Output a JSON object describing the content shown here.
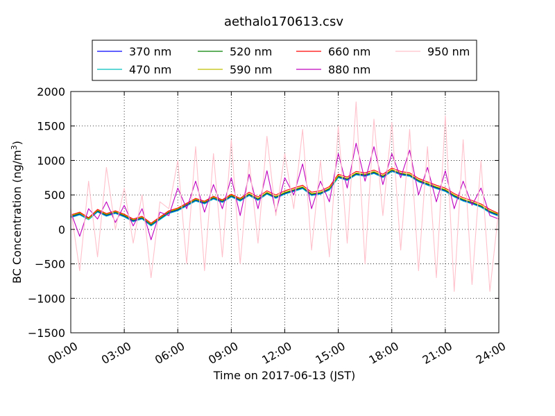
{
  "chart_data": {
    "type": "line",
    "title": "aethalo170613.csv",
    "xlabel": "Time on 2017-06-13 (JST)",
    "ylabel": "BC Concentration (ng/m³)",
    "ylabel_parts": {
      "text": "BC Concentration (ng/m",
      "sup": "3",
      "end": ")"
    },
    "xlim": [
      "2017-06-13 00:00",
      "2017-06-14 00:00"
    ],
    "ylim": [
      -1500,
      2000
    ],
    "grid": true,
    "legend_position": "top, above plot",
    "x_tick_labels": [
      "00:00",
      "03:00",
      "06:00",
      "09:00",
      "12:00",
      "15:00",
      "18:00",
      "21:00",
      "24:00"
    ],
    "y_tick_labels": [
      "−1500",
      "−1000",
      "−500",
      "0",
      "500",
      "1000",
      "1500",
      "2000"
    ],
    "y_ticks": [
      -1500,
      -1000,
      -500,
      0,
      500,
      1000,
      1500,
      2000
    ],
    "x_times": [
      "00:00",
      "00:30",
      "01:00",
      "01:30",
      "02:00",
      "02:30",
      "03:00",
      "03:30",
      "04:00",
      "04:30",
      "05:00",
      "05:30",
      "06:00",
      "06:30",
      "07:00",
      "07:30",
      "08:00",
      "08:30",
      "09:00",
      "09:30",
      "10:00",
      "10:30",
      "11:00",
      "11:30",
      "12:00",
      "12:30",
      "13:00",
      "13:30",
      "14:00",
      "14:30",
      "15:00",
      "15:30",
      "16:00",
      "16:30",
      "17:00",
      "17:30",
      "18:00",
      "18:30",
      "19:00",
      "19:30",
      "20:00",
      "20:30",
      "21:00",
      "21:30",
      "22:00",
      "22:30",
      "23:00",
      "23:30",
      "24:00"
    ],
    "series": [
      {
        "name": "370 nm",
        "color": "#0000ff",
        "values": [
          180,
          220,
          150,
          260,
          200,
          240,
          190,
          120,
          160,
          60,
          150,
          240,
          280,
          350,
          420,
          380,
          450,
          400,
          480,
          420,
          500,
          430,
          520,
          460,
          520,
          560,
          600,
          500,
          520,
          580,
          760,
          720,
          800,
          780,
          820,
          760,
          850,
          800,
          780,
          700,
          650,
          600,
          560,
          480,
          420,
          380,
          330,
          250,
          200
        ]
      },
      {
        "name": "470 nm",
        "color": "#00bfbf",
        "values": [
          170,
          210,
          140,
          250,
          190,
          230,
          180,
          110,
          150,
          50,
          140,
          230,
          270,
          340,
          410,
          370,
          440,
          390,
          470,
          410,
          490,
          420,
          510,
          450,
          510,
          550,
          590,
          490,
          510,
          570,
          750,
          710,
          790,
          770,
          810,
          750,
          840,
          790,
          770,
          690,
          640,
          590,
          550,
          470,
          410,
          370,
          320,
          240,
          190
        ]
      },
      {
        "name": "520 nm",
        "color": "#008000",
        "values": [
          190,
          230,
          160,
          270,
          210,
          250,
          200,
          130,
          170,
          70,
          160,
          250,
          290,
          360,
          430,
          390,
          460,
          410,
          490,
          430,
          510,
          440,
          530,
          470,
          530,
          570,
          610,
          510,
          530,
          590,
          770,
          730,
          810,
          790,
          830,
          770,
          860,
          810,
          790,
          710,
          660,
          610,
          570,
          490,
          430,
          390,
          340,
          260,
          210
        ]
      },
      {
        "name": "590 nm",
        "color": "#bfbf00",
        "values": [
          200,
          240,
          150,
          280,
          220,
          260,
          210,
          140,
          180,
          80,
          170,
          260,
          300,
          370,
          440,
          400,
          470,
          420,
          500,
          440,
          520,
          450,
          540,
          480,
          540,
          580,
          620,
          520,
          540,
          600,
          780,
          740,
          820,
          800,
          840,
          780,
          870,
          820,
          800,
          720,
          670,
          620,
          580,
          500,
          440,
          400,
          350,
          270,
          220
        ]
      },
      {
        "name": "660 nm",
        "color": "#ff0000",
        "values": [
          210,
          250,
          170,
          290,
          230,
          270,
          220,
          150,
          190,
          90,
          180,
          270,
          310,
          380,
          450,
          410,
          480,
          430,
          510,
          450,
          540,
          470,
          560,
          500,
          560,
          600,
          640,
          540,
          560,
          620,
          800,
          760,
          840,
          820,
          860,
          800,
          890,
          840,
          820,
          740,
          690,
          640,
          600,
          520,
          460,
          420,
          370,
          290,
          230
        ]
      },
      {
        "name": "880 nm",
        "color": "#bf00bf",
        "values": [
          250,
          -100,
          300,
          150,
          400,
          100,
          350,
          50,
          300,
          -150,
          250,
          200,
          600,
          300,
          700,
          250,
          650,
          300,
          750,
          200,
          800,
          300,
          850,
          250,
          750,
          500,
          950,
          300,
          700,
          400,
          1100,
          600,
          1250,
          700,
          1200,
          650,
          1100,
          750,
          1150,
          500,
          900,
          400,
          850,
          300,
          700,
          350,
          600,
          200,
          150
        ]
      },
      {
        "name": "950 nm",
        "color": "#ffc0cb",
        "values": [
          300,
          -600,
          700,
          -400,
          900,
          0,
          600,
          -200,
          500,
          -700,
          400,
          300,
          1000,
          -500,
          1200,
          -600,
          1100,
          -400,
          1300,
          -500,
          1000,
          -200,
          1350,
          200,
          1100,
          300,
          1450,
          -300,
          1000,
          -400,
          1500,
          -200,
          1850,
          -500,
          1600,
          200,
          1550,
          -300,
          1450,
          -600,
          1200,
          -700,
          1650,
          -900,
          1300,
          -800,
          1000,
          -900,
          300
        ]
      }
    ]
  }
}
